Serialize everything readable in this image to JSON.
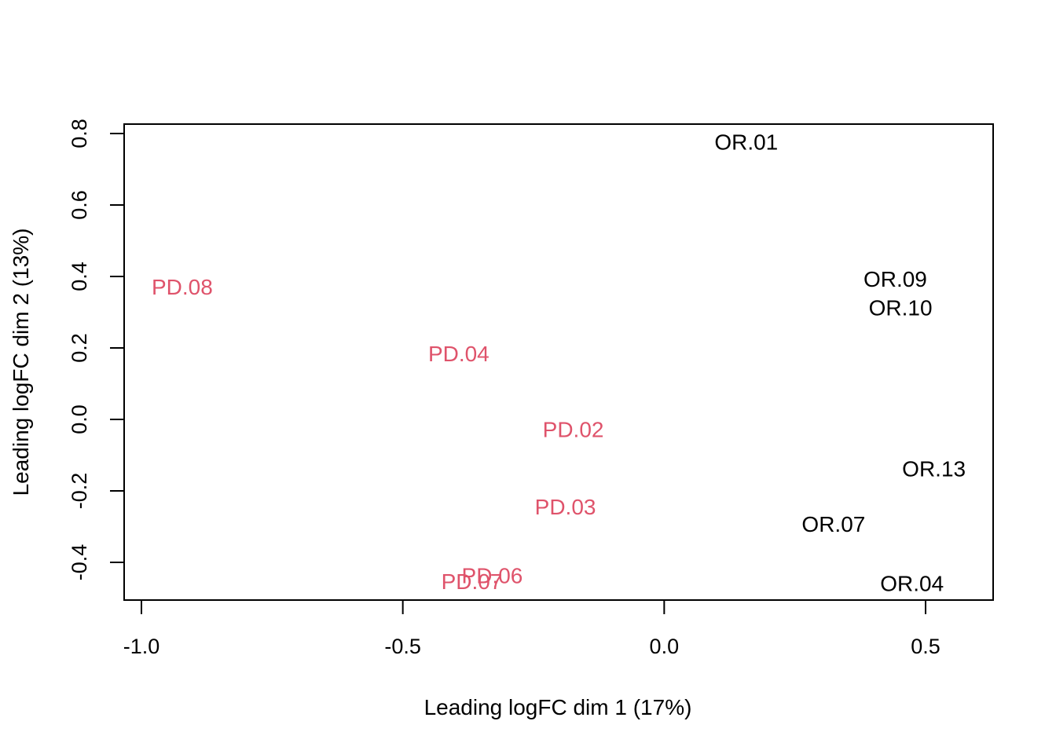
{
  "chart_data": {
    "type": "scatter",
    "title": "",
    "xlabel": "Leading logFC dim 1 (17%)",
    "ylabel": "Leading logFC dim 2 (13%)",
    "xlim": [
      -1.0,
      0.5
    ],
    "ylim": [
      -0.4,
      0.8
    ],
    "xticks": [
      -1.0,
      -0.5,
      0.0,
      0.5
    ],
    "xtick_labels": [
      "-1.0",
      "-0.5",
      "0.0",
      "0.5"
    ],
    "yticks": [
      -0.4,
      -0.2,
      0.0,
      0.2,
      0.4,
      0.6,
      0.8
    ],
    "ytick_labels": [
      "-0.4",
      "-0.2",
      "0.0",
      "0.2",
      "0.4",
      "0.6",
      "0.8"
    ],
    "grid": false,
    "colors": {
      "PD": "#DF536B",
      "OR": "#000000"
    },
    "points": [
      {
        "label": "OR.01",
        "group": "OR",
        "x": 0.157,
        "y": 0.776
      },
      {
        "label": "OR.09",
        "group": "OR",
        "x": 0.442,
        "y": 0.392
      },
      {
        "label": "OR.10",
        "group": "OR",
        "x": 0.452,
        "y": 0.312
      },
      {
        "label": "OR.13",
        "group": "OR",
        "x": 0.516,
        "y": -0.139
      },
      {
        "label": "OR.07",
        "group": "OR",
        "x": 0.324,
        "y": -0.293
      },
      {
        "label": "OR.04",
        "group": "OR",
        "x": 0.474,
        "y": -0.459
      },
      {
        "label": "PD.08",
        "group": "PD",
        "x": -0.922,
        "y": 0.37
      },
      {
        "label": "PD.04",
        "group": "PD",
        "x": -0.393,
        "y": 0.183
      },
      {
        "label": "PD.02",
        "group": "PD",
        "x": -0.174,
        "y": -0.029
      },
      {
        "label": "PD.03",
        "group": "PD",
        "x": -0.189,
        "y": -0.245
      },
      {
        "label": "PD.06",
        "group": "PD",
        "x": -0.329,
        "y": -0.437
      },
      {
        "label": "PD.07",
        "group": "PD",
        "x": -0.368,
        "y": -0.454
      }
    ]
  }
}
